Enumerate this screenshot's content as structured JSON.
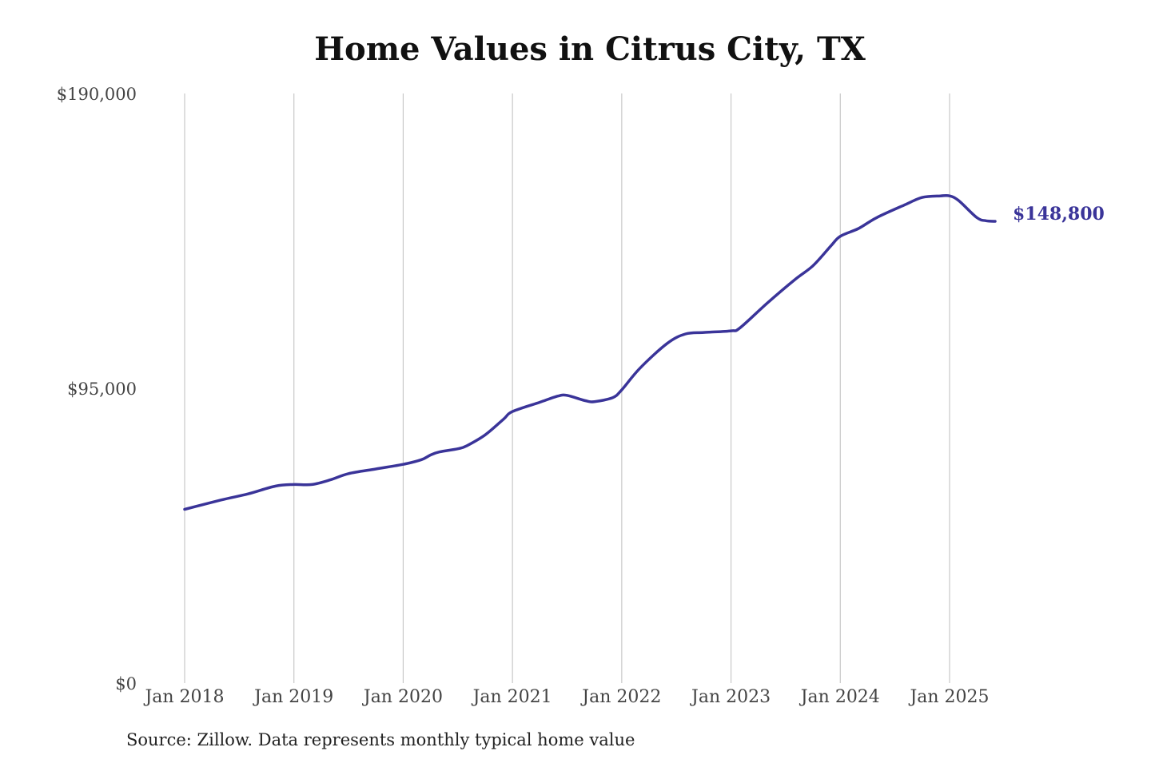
{
  "chart_data": {
    "type": "line",
    "title": "Home Values in Citrus City, TX",
    "source": "Source: Zillow. Data represents monthly typical home value",
    "ylim": [
      0,
      190000
    ],
    "y_ticks": [
      {
        "value": 0,
        "label": "$0"
      },
      {
        "value": 95000,
        "label": "$95,000"
      },
      {
        "value": 190000,
        "label": "$190,000"
      }
    ],
    "x_ticks": [
      {
        "value": 2018.0,
        "label": "Jan 2018"
      },
      {
        "value": 2019.0,
        "label": "Jan 2019"
      },
      {
        "value": 2020.0,
        "label": "Jan 2020"
      },
      {
        "value": 2021.0,
        "label": "Jan 2021"
      },
      {
        "value": 2022.0,
        "label": "Jan 2022"
      },
      {
        "value": 2023.0,
        "label": "Jan 2023"
      },
      {
        "value": 2024.0,
        "label": "Jan 2024"
      },
      {
        "value": 2025.0,
        "label": "Jan 2025"
      }
    ],
    "xlim": [
      2018.0,
      2025.417
    ],
    "grid": {
      "vertical": true,
      "horizontal": false
    },
    "line_color": "#3a3499",
    "end_label": "$148,800",
    "series": [
      {
        "x": [
          2018.0,
          2018.333,
          2018.583,
          2018.833,
          2019.0,
          2019.167,
          2019.333,
          2019.5,
          2019.75,
          2020.0,
          2020.167,
          2020.25,
          2020.333,
          2020.5,
          2020.583,
          2020.75,
          2020.917,
          2021.0,
          2021.25,
          2021.417,
          2021.5,
          2021.667,
          2021.75,
          2021.917,
          2022.0,
          2022.167,
          2022.417,
          2022.583,
          2022.75,
          2023.0,
          2023.083,
          2023.333,
          2023.583,
          2023.75,
          2023.917,
          2024.0,
          2024.167,
          2024.333,
          2024.583,
          2024.75,
          2024.917,
          2025.0,
          2025.083,
          2025.25,
          2025.333,
          2025.417
        ],
        "y": [
          56000,
          59000,
          61000,
          63500,
          64000,
          64000,
          65500,
          67500,
          69000,
          70500,
          72000,
          73500,
          74500,
          75500,
          76500,
          80000,
          85000,
          87500,
          90500,
          92500,
          92700,
          91000,
          90700,
          92000,
          94500,
          101500,
          109500,
          112500,
          113000,
          113500,
          114500,
          122500,
          130000,
          134500,
          141000,
          144000,
          146500,
          150000,
          154000,
          156500,
          157000,
          157000,
          155500,
          150000,
          149000,
          148800
        ]
      }
    ]
  }
}
